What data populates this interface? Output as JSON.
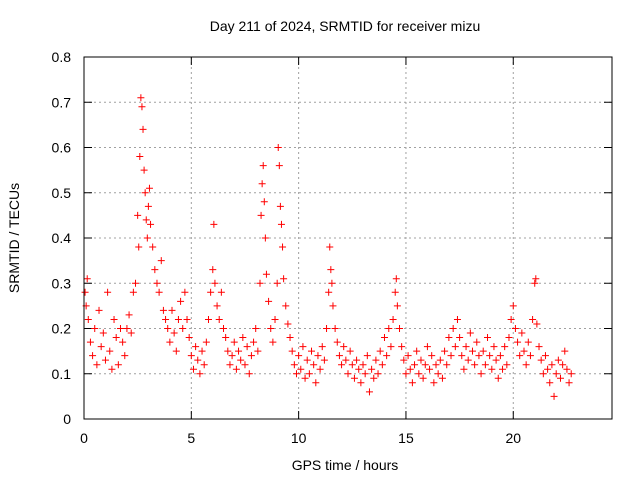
{
  "chart_data": {
    "type": "scatter",
    "title": "Day 211 of 2024, SRMTID for receiver mizu",
    "xlabel": "GPS time / hours",
    "ylabel": "SRMTID / TECUs",
    "xlim": [
      0,
      24.6
    ],
    "ylim": [
      0,
      0.8
    ],
    "xticks": [
      0,
      5,
      10,
      15,
      20
    ],
    "xtick_labels": [
      "0",
      "5",
      "10",
      "15",
      "20"
    ],
    "yticks": [
      0,
      0.1,
      0.2,
      0.3,
      0.4,
      0.5,
      0.6,
      0.7,
      0.8
    ],
    "ytick_labels": [
      "0",
      "0.1",
      "0.2",
      "0.3",
      "0.4",
      "0.5",
      "0.6",
      "0.7",
      "0.8"
    ],
    "grid": true,
    "marker": "+",
    "series": [
      {
        "name": "SRMTID",
        "color": "#ff0000",
        "points": [
          [
            0.05,
            0.28
          ],
          [
            0.1,
            0.25
          ],
          [
            0.15,
            0.31
          ],
          [
            0.2,
            0.22
          ],
          [
            0.3,
            0.17
          ],
          [
            0.4,
            0.14
          ],
          [
            0.5,
            0.2
          ],
          [
            0.6,
            0.12
          ],
          [
            0.7,
            0.24
          ],
          [
            0.8,
            0.16
          ],
          [
            0.9,
            0.19
          ],
          [
            1.0,
            0.13
          ],
          [
            1.1,
            0.28
          ],
          [
            1.2,
            0.15
          ],
          [
            1.3,
            0.11
          ],
          [
            1.4,
            0.22
          ],
          [
            1.5,
            0.18
          ],
          [
            1.6,
            0.12
          ],
          [
            1.7,
            0.2
          ],
          [
            1.8,
            0.17
          ],
          [
            1.9,
            0.14
          ],
          [
            2.0,
            0.2
          ],
          [
            2.1,
            0.23
          ],
          [
            2.2,
            0.19
          ],
          [
            2.3,
            0.28
          ],
          [
            2.4,
            0.3
          ],
          [
            2.5,
            0.45
          ],
          [
            2.55,
            0.38
          ],
          [
            2.6,
            0.58
          ],
          [
            2.65,
            0.71
          ],
          [
            2.7,
            0.69
          ],
          [
            2.75,
            0.64
          ],
          [
            2.8,
            0.55
          ],
          [
            2.85,
            0.5
          ],
          [
            2.9,
            0.44
          ],
          [
            2.95,
            0.4
          ],
          [
            3.0,
            0.47
          ],
          [
            3.05,
            0.51
          ],
          [
            3.1,
            0.43
          ],
          [
            3.2,
            0.38
          ],
          [
            3.3,
            0.33
          ],
          [
            3.4,
            0.3
          ],
          [
            3.5,
            0.28
          ],
          [
            3.6,
            0.35
          ],
          [
            3.7,
            0.24
          ],
          [
            3.8,
            0.22
          ],
          [
            3.9,
            0.2
          ],
          [
            4.0,
            0.17
          ],
          [
            4.1,
            0.24
          ],
          [
            4.2,
            0.19
          ],
          [
            4.3,
            0.15
          ],
          [
            4.4,
            0.22
          ],
          [
            4.5,
            0.26
          ],
          [
            4.6,
            0.2
          ],
          [
            4.7,
            0.28
          ],
          [
            4.8,
            0.22
          ],
          [
            4.9,
            0.18
          ],
          [
            5.0,
            0.14
          ],
          [
            5.1,
            0.11
          ],
          [
            5.2,
            0.16
          ],
          [
            5.3,
            0.13
          ],
          [
            5.4,
            0.1
          ],
          [
            5.5,
            0.15
          ],
          [
            5.6,
            0.12
          ],
          [
            5.7,
            0.17
          ],
          [
            5.8,
            0.22
          ],
          [
            5.9,
            0.28
          ],
          [
            6.0,
            0.33
          ],
          [
            6.05,
            0.43
          ],
          [
            6.1,
            0.3
          ],
          [
            6.2,
            0.25
          ],
          [
            6.3,
            0.22
          ],
          [
            6.4,
            0.28
          ],
          [
            6.5,
            0.2
          ],
          [
            6.6,
            0.18
          ],
          [
            6.7,
            0.15
          ],
          [
            6.8,
            0.12
          ],
          [
            6.9,
            0.14
          ],
          [
            7.0,
            0.17
          ],
          [
            7.1,
            0.11
          ],
          [
            7.2,
            0.15
          ],
          [
            7.3,
            0.13
          ],
          [
            7.4,
            0.18
          ],
          [
            7.5,
            0.12
          ],
          [
            7.6,
            0.16
          ],
          [
            7.7,
            0.1
          ],
          [
            7.8,
            0.14
          ],
          [
            7.9,
            0.17
          ],
          [
            8.0,
            0.2
          ],
          [
            8.1,
            0.15
          ],
          [
            8.2,
            0.3
          ],
          [
            8.25,
            0.45
          ],
          [
            8.3,
            0.52
          ],
          [
            8.35,
            0.56
          ],
          [
            8.4,
            0.48
          ],
          [
            8.45,
            0.4
          ],
          [
            8.5,
            0.32
          ],
          [
            8.6,
            0.26
          ],
          [
            8.7,
            0.2
          ],
          [
            8.8,
            0.17
          ],
          [
            8.9,
            0.22
          ],
          [
            9.0,
            0.3
          ],
          [
            9.05,
            0.6
          ],
          [
            9.1,
            0.56
          ],
          [
            9.15,
            0.47
          ],
          [
            9.2,
            0.43
          ],
          [
            9.25,
            0.38
          ],
          [
            9.3,
            0.31
          ],
          [
            9.4,
            0.25
          ],
          [
            9.5,
            0.21
          ],
          [
            9.6,
            0.18
          ],
          [
            9.7,
            0.15
          ],
          [
            9.8,
            0.12
          ],
          [
            9.9,
            0.1
          ],
          [
            10.0,
            0.14
          ],
          [
            10.1,
            0.11
          ],
          [
            10.2,
            0.16
          ],
          [
            10.3,
            0.09
          ],
          [
            10.4,
            0.13
          ],
          [
            10.5,
            0.1
          ],
          [
            10.6,
            0.15
          ],
          [
            10.7,
            0.12
          ],
          [
            10.8,
            0.08
          ],
          [
            10.9,
            0.14
          ],
          [
            11.0,
            0.11
          ],
          [
            11.1,
            0.16
          ],
          [
            11.2,
            0.13
          ],
          [
            11.3,
            0.2
          ],
          [
            11.4,
            0.28
          ],
          [
            11.45,
            0.38
          ],
          [
            11.5,
            0.33
          ],
          [
            11.55,
            0.3
          ],
          [
            11.6,
            0.25
          ],
          [
            11.7,
            0.2
          ],
          [
            11.8,
            0.17
          ],
          [
            11.9,
            0.14
          ],
          [
            12.0,
            0.12
          ],
          [
            12.1,
            0.16
          ],
          [
            12.2,
            0.13
          ],
          [
            12.3,
            0.1
          ],
          [
            12.4,
            0.15
          ],
          [
            12.5,
            0.12
          ],
          [
            12.6,
            0.09
          ],
          [
            12.7,
            0.13
          ],
          [
            12.8,
            0.11
          ],
          [
            12.9,
            0.08
          ],
          [
            13.0,
            0.12
          ],
          [
            13.1,
            0.1
          ],
          [
            13.2,
            0.14
          ],
          [
            13.3,
            0.06
          ],
          [
            13.4,
            0.11
          ],
          [
            13.5,
            0.09
          ],
          [
            13.6,
            0.13
          ],
          [
            13.7,
            0.1
          ],
          [
            13.8,
            0.15
          ],
          [
            13.9,
            0.12
          ],
          [
            14.0,
            0.18
          ],
          [
            14.1,
            0.14
          ],
          [
            14.2,
            0.2
          ],
          [
            14.3,
            0.16
          ],
          [
            14.4,
            0.22
          ],
          [
            14.5,
            0.28
          ],
          [
            14.55,
            0.31
          ],
          [
            14.6,
            0.25
          ],
          [
            14.7,
            0.2
          ],
          [
            14.8,
            0.16
          ],
          [
            14.9,
            0.13
          ],
          [
            15.0,
            0.1
          ],
          [
            15.1,
            0.14
          ],
          [
            15.2,
            0.11
          ],
          [
            15.3,
            0.08
          ],
          [
            15.4,
            0.12
          ],
          [
            15.5,
            0.15
          ],
          [
            15.6,
            0.1
          ],
          [
            15.7,
            0.13
          ],
          [
            15.8,
            0.09
          ],
          [
            15.9,
            0.12
          ],
          [
            16.0,
            0.16
          ],
          [
            16.1,
            0.11
          ],
          [
            16.2,
            0.14
          ],
          [
            16.3,
            0.08
          ],
          [
            16.4,
            0.12
          ],
          [
            16.5,
            0.1
          ],
          [
            16.6,
            0.13
          ],
          [
            16.7,
            0.09
          ],
          [
            16.8,
            0.15
          ],
          [
            16.9,
            0.12
          ],
          [
            17.0,
            0.18
          ],
          [
            17.1,
            0.14
          ],
          [
            17.2,
            0.2
          ],
          [
            17.3,
            0.16
          ],
          [
            17.4,
            0.22
          ],
          [
            17.5,
            0.18
          ],
          [
            17.6,
            0.14
          ],
          [
            17.7,
            0.11
          ],
          [
            17.8,
            0.16
          ],
          [
            17.9,
            0.13
          ],
          [
            18.0,
            0.19
          ],
          [
            18.1,
            0.15
          ],
          [
            18.2,
            0.12
          ],
          [
            18.3,
            0.17
          ],
          [
            18.4,
            0.14
          ],
          [
            18.5,
            0.1
          ],
          [
            18.6,
            0.15
          ],
          [
            18.7,
            0.12
          ],
          [
            18.8,
            0.18
          ],
          [
            18.9,
            0.14
          ],
          [
            19.0,
            0.11
          ],
          [
            19.1,
            0.16
          ],
          [
            19.2,
            0.13
          ],
          [
            19.3,
            0.09
          ],
          [
            19.4,
            0.14
          ],
          [
            19.5,
            0.11
          ],
          [
            19.6,
            0.16
          ],
          [
            19.7,
            0.12
          ],
          [
            19.8,
            0.18
          ],
          [
            19.9,
            0.22
          ],
          [
            20.0,
            0.25
          ],
          [
            20.1,
            0.2
          ],
          [
            20.2,
            0.17
          ],
          [
            20.3,
            0.14
          ],
          [
            20.4,
            0.19
          ],
          [
            20.5,
            0.15
          ],
          [
            20.6,
            0.12
          ],
          [
            20.7,
            0.17
          ],
          [
            20.8,
            0.14
          ],
          [
            20.9,
            0.22
          ],
          [
            21.0,
            0.3
          ],
          [
            21.05,
            0.31
          ],
          [
            21.1,
            0.21
          ],
          [
            21.2,
            0.16
          ],
          [
            21.3,
            0.13
          ],
          [
            21.4,
            0.1
          ],
          [
            21.5,
            0.14
          ],
          [
            21.6,
            0.11
          ],
          [
            21.7,
            0.08
          ],
          [
            21.8,
            0.12
          ],
          [
            21.9,
            0.05
          ],
          [
            22.0,
            0.1
          ],
          [
            22.1,
            0.13
          ],
          [
            22.2,
            0.09
          ],
          [
            22.3,
            0.12
          ],
          [
            22.4,
            0.15
          ],
          [
            22.5,
            0.11
          ],
          [
            22.6,
            0.08
          ],
          [
            22.7,
            0.1
          ]
        ]
      }
    ]
  }
}
